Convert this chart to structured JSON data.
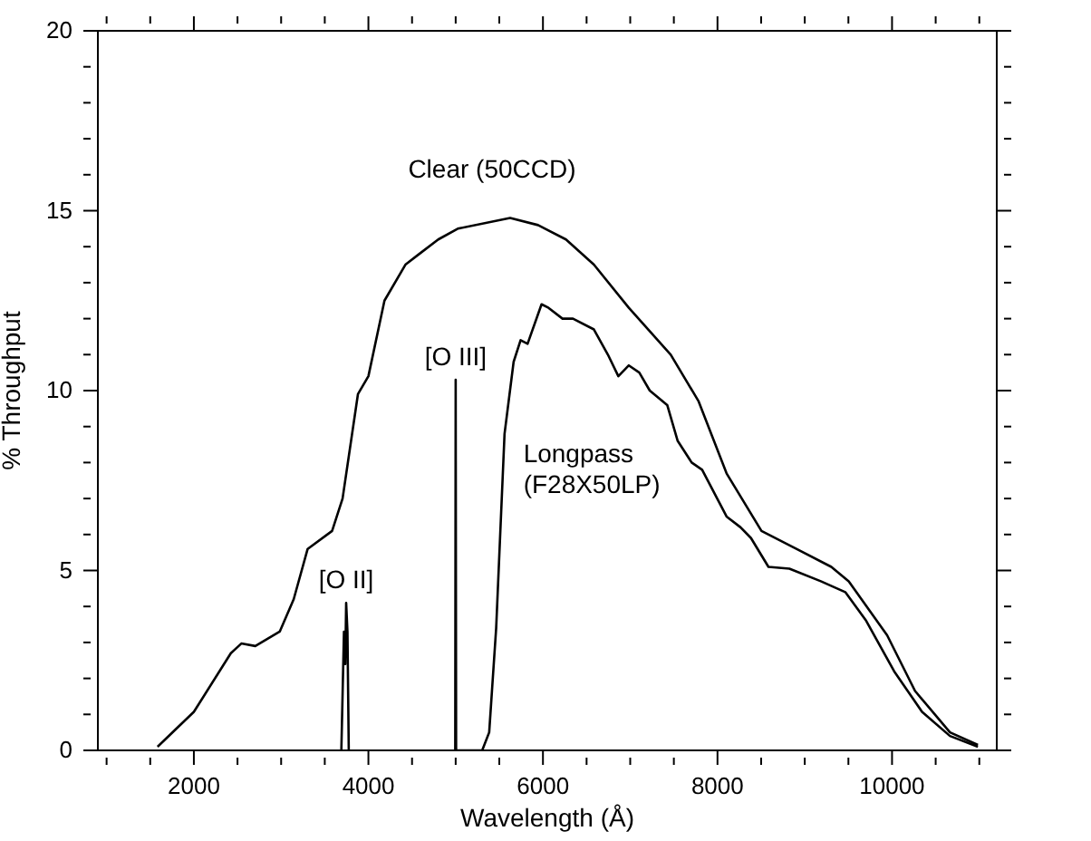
{
  "chart_data": {
    "type": "line",
    "xlabel": "Wavelength (Å)",
    "ylabel": "% Throughput",
    "xlim": [
      900,
      11200
    ],
    "ylim": [
      0,
      20
    ],
    "xticks": [
      {
        "value": 1000,
        "label": null
      },
      {
        "value": 1500,
        "label": null
      },
      2000,
      {
        "value": 2500,
        "label": null
      },
      {
        "value": 3000,
        "label": null
      },
      {
        "value": 3500,
        "label": null
      },
      4000,
      {
        "value": 4500,
        "label": null
      },
      {
        "value": 5000,
        "label": null
      },
      {
        "value": 5500,
        "label": null
      },
      6000,
      {
        "value": 6500,
        "label": null
      },
      {
        "value": 7000,
        "label": null
      },
      {
        "value": 7500,
        "label": null
      },
      8000,
      {
        "value": 8500,
        "label": null
      },
      {
        "value": 9000,
        "label": null
      },
      {
        "value": 9500,
        "label": null
      },
      10000,
      {
        "value": 10500,
        "label": null
      },
      {
        "value": 11000,
        "label": null
      }
    ],
    "yticks": [
      0,
      {
        "value": 1,
        "label": null
      },
      {
        "value": 2,
        "label": null
      },
      {
        "value": 3,
        "label": null
      },
      {
        "value": 4,
        "label": null
      },
      5,
      {
        "value": 6,
        "label": null
      },
      {
        "value": 7,
        "label": null
      },
      {
        "value": 8,
        "label": null
      },
      {
        "value": 9,
        "label": null
      },
      10,
      {
        "value": 11,
        "label": null
      },
      {
        "value": 12,
        "label": null
      },
      {
        "value": 13,
        "label": null
      },
      {
        "value": 14,
        "label": null
      },
      15,
      {
        "value": 16,
        "label": null
      },
      {
        "value": 17,
        "label": null
      },
      {
        "value": 18,
        "label": null
      },
      {
        "value": 19,
        "label": null
      },
      20
    ],
    "grid": false,
    "legend": false,
    "marker": "none",
    "line_style": "solid",
    "series": [
      {
        "name": "Clear (50CCD)",
        "color": "#000000",
        "x": [
          1584,
          2000,
          2424,
          2544,
          2704,
          2984,
          3144,
          3304,
          3584,
          3704,
          3880,
          4000,
          4184,
          4424,
          4584,
          4800,
          5024,
          5624,
          5944,
          6264,
          6584,
          6984,
          7464,
          7784,
          8104,
          8504,
          8904,
          9304,
          9504,
          9944,
          10264,
          10664,
          10984
        ],
        "values": [
          0.1,
          1.07,
          2.7,
          2.97,
          2.9,
          3.3,
          4.2,
          5.6,
          6.1,
          7.0,
          9.9,
          10.4,
          12.5,
          13.5,
          13.8,
          14.2,
          14.5,
          14.8,
          14.6,
          14.2,
          13.5,
          12.3,
          11.0,
          9.7,
          7.7,
          6.1,
          5.6,
          5.1,
          4.7,
          3.2,
          1.65,
          0.5,
          0.15
        ]
      },
      {
        "name": "Longpass (F28X50LP)",
        "color": "#000000",
        "x": [
          5000,
          5304,
          5384,
          5464,
          5560,
          5664,
          5744,
          5824,
          5984,
          6064,
          6224,
          6344,
          6584,
          6744,
          6864,
          6984,
          7104,
          7224,
          7424,
          7544,
          7704,
          7824,
          8104,
          8264,
          8384,
          8584,
          8824,
          9184,
          9464,
          9704,
          10024,
          10344,
          10664,
          10984
        ],
        "values": [
          0,
          0,
          0.5,
          3.4,
          8.8,
          10.8,
          11.4,
          11.3,
          12.4,
          12.3,
          12.0,
          12.0,
          11.7,
          11.0,
          10.4,
          10.7,
          10.5,
          10.0,
          9.6,
          8.6,
          8.0,
          7.8,
          6.5,
          6.2,
          5.9,
          5.1,
          5.05,
          4.7,
          4.4,
          3.6,
          2.2,
          1.07,
          0.4,
          0.1
        ]
      },
      {
        "color": "#000000",
        "x": [
          3690,
          3720,
          3735,
          3745,
          3760,
          3775
        ],
        "values": [
          0,
          3.3,
          2.4,
          4.1,
          3.3,
          0
        ]
      },
      {
        "color": "#000000",
        "x": [
          4995,
          5000,
          5005
        ],
        "values": [
          0,
          10.3,
          0
        ]
      }
    ],
    "annotations": [
      {
        "text": "[O II]",
        "x": 3745,
        "y": 4.1
      },
      {
        "text": "[O III]",
        "x": 5000,
        "y": 10.3
      }
    ]
  }
}
